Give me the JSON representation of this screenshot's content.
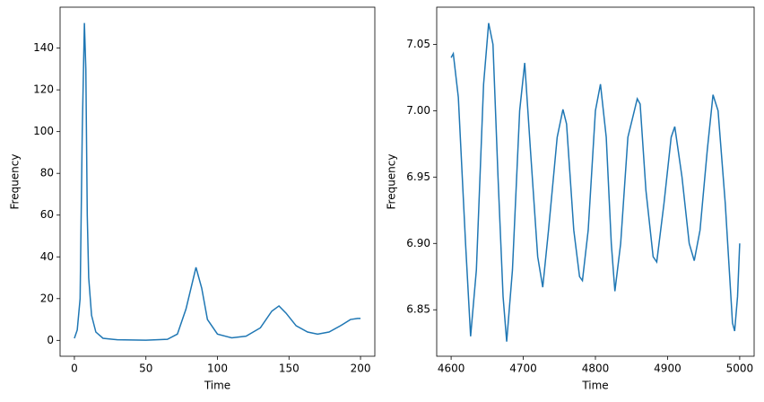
{
  "chart_data": [
    {
      "type": "line",
      "xlabel": "Time",
      "ylabel": "Frequency",
      "color": "#1f77b4",
      "x": [
        0,
        2,
        4,
        5.5,
        7,
        8,
        9,
        10,
        12,
        15,
        20,
        30,
        50,
        65,
        72,
        78,
        85,
        89,
        93,
        100,
        110,
        120,
        130,
        138,
        143,
        148,
        155,
        163,
        170,
        178,
        186,
        193,
        198,
        200
      ],
      "values": [
        1,
        5,
        20,
        100,
        152,
        130,
        60,
        30,
        12,
        4,
        1,
        0.3,
        0.1,
        0.5,
        3,
        15,
        35,
        25,
        10,
        3,
        1.2,
        2,
        6,
        14,
        16.5,
        13,
        7,
        4,
        3,
        4,
        7,
        10,
        10.5,
        10.5
      ],
      "xlim": [
        -10,
        210
      ],
      "ylim": [
        -7.6,
        159.6
      ],
      "xticks": [
        0,
        50,
        100,
        150,
        200
      ],
      "yticks": [
        0,
        20,
        40,
        60,
        80,
        100,
        120,
        140
      ]
    },
    {
      "type": "line",
      "xlabel": "Time",
      "ylabel": "Frequency",
      "color": "#1f77b4",
      "x": [
        4600,
        4603,
        4610,
        4620,
        4627,
        4635,
        4645,
        4652,
        4658,
        4665,
        4672,
        4677,
        4685,
        4695,
        4702,
        4710,
        4720,
        4727,
        4735,
        4747,
        4755,
        4760,
        4770,
        4778,
        4782,
        4790,
        4800,
        4807,
        4815,
        4822,
        4827,
        4835,
        4845,
        4858,
        4862,
        4870,
        4880,
        4885,
        4895,
        4905,
        4910,
        4920,
        4930,
        4937,
        4945,
        4955,
        4963,
        4970,
        4980,
        4990,
        4993,
        4997,
        5000
      ],
      "values": [
        7.04,
        7.043,
        7.01,
        6.9,
        6.83,
        6.88,
        7.02,
        7.066,
        7.05,
        6.95,
        6.86,
        6.826,
        6.88,
        7.0,
        7.036,
        6.97,
        6.89,
        6.867,
        6.91,
        6.98,
        7.001,
        6.99,
        6.91,
        6.875,
        6.872,
        6.91,
        7.0,
        7.02,
        6.98,
        6.9,
        6.864,
        6.9,
        6.98,
        7.009,
        7.005,
        6.94,
        6.89,
        6.886,
        6.93,
        6.98,
        6.988,
        6.95,
        6.9,
        6.887,
        6.91,
        6.97,
        7.012,
        7.0,
        6.93,
        6.84,
        6.834,
        6.86,
        6.9
      ],
      "xlim": [
        4580,
        5020
      ],
      "ylim": [
        6.815,
        7.078
      ],
      "xticks": [
        4600,
        4700,
        4800,
        4900,
        5000
      ],
      "yticks": [
        6.85,
        {
          "value": 6.9,
          "label": "6.90"
        },
        6.95,
        {
          "value": 7.0,
          "label": "7.00"
        },
        7.05
      ]
    }
  ]
}
